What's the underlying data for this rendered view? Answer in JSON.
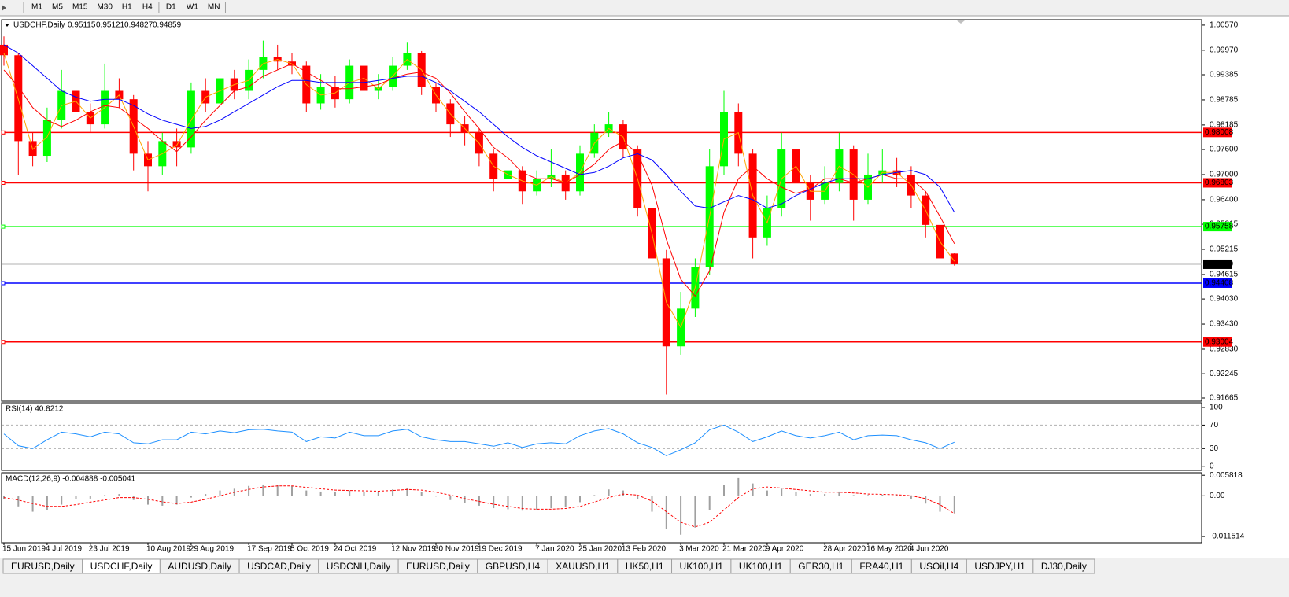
{
  "toolbar": {
    "timeframes": [
      "M1",
      "M5",
      "M15",
      "M30",
      "H1",
      "H4",
      "D1",
      "W1",
      "MN"
    ]
  },
  "tabs": {
    "items": [
      "EURUSD,Daily",
      "USDCHF,Daily",
      "AUDUSD,Daily",
      "USDCAD,Daily",
      "USDCNH,Daily",
      "EURUSD,Daily",
      "GBPUSD,H4",
      "XAUUSD,H1",
      "HK50,H1",
      "UK100,H1",
      "UK100,H1",
      "GER30,H1",
      "FRA40,H1",
      "USOil,H4",
      "USDJPY,H1",
      "DJ30,Daily"
    ],
    "active": 1
  },
  "chart_data": [
    {
      "type": "candlestick",
      "title": "USDCHF,Daily",
      "categories": [
        "15 Jun 2019",
        null,
        null,
        "4 Jul 2019",
        null,
        null,
        "23 Jul 2019",
        null,
        null,
        null,
        "10 Aug 2019",
        null,
        null,
        "29 Aug 2019",
        null,
        null,
        null,
        "17 Sep 2019",
        null,
        null,
        "5 Oct 2019",
        null,
        null,
        "24 Oct 2019",
        null,
        null,
        null,
        "12 Nov 2019",
        null,
        null,
        "30 Nov 2019",
        null,
        null,
        "19 Dec 2019",
        null,
        null,
        null,
        "7 Jan 2020",
        null,
        null,
        "25 Jan 2020",
        null,
        null,
        "13 Feb 2020",
        null,
        null,
        null,
        "3 Mar 2020",
        null,
        null,
        "21 Mar 2020",
        null,
        null,
        "9 Apr 2020",
        null,
        null,
        null,
        "28 Apr 2020",
        null,
        null,
        "16 May 2020",
        null,
        null,
        "4 Jun 2020",
        null,
        null,
        null
      ],
      "open": [
        1.001,
        0.9985,
        0.978,
        0.9745,
        0.983,
        0.99,
        0.985,
        0.982,
        0.99,
        0.988,
        0.975,
        0.972,
        0.978,
        0.9765,
        0.99,
        0.987,
        0.993,
        0.99,
        0.995,
        0.998,
        0.997,
        0.996,
        0.987,
        0.991,
        0.988,
        0.996,
        0.99,
        0.991,
        0.996,
        0.999,
        0.991,
        0.987,
        0.982,
        0.98,
        0.975,
        0.969,
        0.971,
        0.966,
        0.969,
        0.97,
        0.966,
        0.975,
        0.98,
        0.982,
        0.976,
        0.962,
        0.95,
        0.929,
        0.938,
        0.948,
        0.972,
        0.985,
        0.975,
        0.955,
        0.962,
        0.976,
        0.968,
        0.964,
        0.968,
        0.976,
        0.964,
        0.97,
        0.971,
        0.97,
        0.965,
        0.958,
        0.95115
      ],
      "high": [
        1.003,
        0.999,
        0.98,
        0.986,
        0.995,
        0.992,
        0.987,
        0.9965,
        0.993,
        0.989,
        0.978,
        0.98,
        0.981,
        0.992,
        0.993,
        0.996,
        0.995,
        0.9975,
        1.002,
        1.001,
        0.999,
        0.997,
        0.994,
        0.9935,
        0.9975,
        0.9965,
        0.994,
        0.998,
        1.0015,
        0.9995,
        0.992,
        0.988,
        0.984,
        0.981,
        0.976,
        0.974,
        0.972,
        0.971,
        0.976,
        0.971,
        0.977,
        0.982,
        0.985,
        0.983,
        0.977,
        0.964,
        0.952,
        0.942,
        0.95,
        0.976,
        0.99,
        0.987,
        0.976,
        0.965,
        0.98,
        0.979,
        0.97,
        0.972,
        0.98,
        0.977,
        0.975,
        0.976,
        0.974,
        0.972,
        0.966,
        0.959,
        0.95121
      ],
      "low": [
        0.996,
        0.97,
        0.972,
        0.973,
        0.981,
        0.983,
        0.98,
        0.981,
        0.986,
        0.971,
        0.966,
        0.97,
        0.972,
        0.975,
        0.985,
        0.986,
        0.988,
        0.988,
        0.993,
        0.995,
        0.994,
        0.985,
        0.9855,
        0.986,
        0.987,
        0.988,
        0.988,
        0.99,
        0.995,
        0.989,
        0.985,
        0.979,
        0.977,
        0.972,
        0.966,
        0.968,
        0.963,
        0.965,
        0.967,
        0.964,
        0.965,
        0.974,
        0.979,
        0.974,
        0.96,
        0.947,
        0.9175,
        0.927,
        0.936,
        0.946,
        0.97,
        0.972,
        0.95,
        0.953,
        0.96,
        0.965,
        0.959,
        0.963,
        0.966,
        0.959,
        0.963,
        0.968,
        0.967,
        0.962,
        0.955,
        0.9378,
        0.94827
      ],
      "close": [
        0.9985,
        0.978,
        0.9745,
        0.983,
        0.99,
        0.985,
        0.982,
        0.99,
        0.988,
        0.975,
        0.972,
        0.978,
        0.9765,
        0.99,
        0.987,
        0.993,
        0.99,
        0.995,
        0.998,
        0.997,
        0.996,
        0.987,
        0.991,
        0.988,
        0.996,
        0.99,
        0.991,
        0.996,
        0.999,
        0.991,
        0.987,
        0.982,
        0.98,
        0.975,
        0.969,
        0.971,
        0.966,
        0.969,
        0.97,
        0.966,
        0.975,
        0.98,
        0.982,
        0.976,
        0.962,
        0.95,
        0.929,
        0.938,
        0.948,
        0.972,
        0.985,
        0.975,
        0.955,
        0.962,
        0.976,
        0.968,
        0.964,
        0.968,
        0.976,
        0.964,
        0.97,
        0.971,
        0.97,
        0.965,
        0.958,
        0.95,
        0.94859
      ],
      "up_color": "#00ff00",
      "down_color": "#ff0000",
      "series": [
        {
          "color": "#ffa500",
          "values": [
            0.999,
            0.988,
            0.976,
            0.979,
            0.9865,
            0.9875,
            0.9835,
            0.986,
            0.989,
            0.9815,
            0.9735,
            0.975,
            0.977,
            0.983,
            0.9885,
            0.99,
            0.9915,
            0.9925,
            0.9965,
            0.9975,
            0.9965,
            0.9915,
            0.989,
            0.9895,
            0.992,
            0.993,
            0.9905,
            0.9935,
            0.9975,
            0.995,
            0.989,
            0.9845,
            0.981,
            0.9775,
            0.972,
            0.97,
            0.9685,
            0.9675,
            0.9695,
            0.968,
            0.9705,
            0.9775,
            0.981,
            0.979,
            0.969,
            0.956,
            0.9395,
            0.9335,
            0.943,
            0.96,
            0.9785,
            0.98,
            0.965,
            0.9585,
            0.969,
            0.972,
            0.966,
            0.966,
            0.972,
            0.97,
            0.967,
            0.9705,
            0.9705,
            0.9675,
            0.9615,
            0.954,
            0.9493
          ]
        },
        {
          "color": "#ff0000",
          "values": [
            0.995,
            0.991,
            0.986,
            0.983,
            0.9815,
            0.983,
            0.985,
            0.9865,
            0.986,
            0.9835,
            0.981,
            0.978,
            0.9755,
            0.979,
            0.983,
            0.9865,
            0.99,
            0.991,
            0.9935,
            0.995,
            0.9965,
            0.9945,
            0.9925,
            0.9905,
            0.9905,
            0.991,
            0.9915,
            0.993,
            0.994,
            0.9945,
            0.993,
            0.9895,
            0.985,
            0.981,
            0.9765,
            0.974,
            0.9705,
            0.969,
            0.969,
            0.968,
            0.97,
            0.9725,
            0.976,
            0.978,
            0.975,
            0.9675,
            0.9545,
            0.945,
            0.941,
            0.947,
            0.961,
            0.969,
            0.972,
            0.969,
            0.967,
            0.9655,
            0.9665,
            0.969,
            0.969,
            0.968,
            0.969,
            0.97,
            0.969,
            0.969,
            0.966,
            0.96,
            0.9535
          ]
        },
        {
          "color": "#0000ff",
          "values": [
            1.001,
            0.999,
            0.996,
            0.993,
            0.99,
            0.9885,
            0.9875,
            0.988,
            0.988,
            0.9865,
            0.9845,
            0.983,
            0.982,
            0.981,
            0.9815,
            0.983,
            0.985,
            0.987,
            0.989,
            0.991,
            0.9925,
            0.9925,
            0.992,
            0.992,
            0.992,
            0.992,
            0.9925,
            0.993,
            0.9935,
            0.9935,
            0.992,
            0.99,
            0.9875,
            0.985,
            0.982,
            0.979,
            0.9765,
            0.9745,
            0.973,
            0.9715,
            0.97,
            0.9705,
            0.972,
            0.974,
            0.975,
            0.9735,
            0.97,
            0.966,
            0.9625,
            0.962,
            0.9635,
            0.965,
            0.964,
            0.962,
            0.963,
            0.965,
            0.9665,
            0.968,
            0.969,
            0.969,
            0.969,
            0.97,
            0.9705,
            0.971,
            0.97,
            0.967,
            0.961
          ]
        }
      ],
      "levels": [
        {
          "value": 0.98008,
          "color": "#ff0000"
        },
        {
          "value": 0.96803,
          "color": "#ff0000"
        },
        {
          "value": 0.95758,
          "color": "#00ff00"
        },
        {
          "value": 0.94408,
          "color": "#0000ff"
        },
        {
          "value": 0.93004,
          "color": "#ff0000"
        }
      ],
      "ylim": [
        0.9159,
        1.007
      ],
      "yticks": [
        {
          "value": 1.0057,
          "label": "1.00570"
        },
        {
          "value": 0.9997,
          "label": "0.99970"
        },
        0.99385,
        0.98785,
        0.98185,
        {
          "value": 0.976,
          "label": "0.97600"
        },
        {
          "value": 0.97,
          "label": "0.97000"
        },
        {
          "value": 0.964,
          "label": "0.96400"
        },
        0.95815,
        0.95215,
        0.94615,
        {
          "value": 0.9403,
          "label": "0.94030"
        },
        {
          "value": 0.9343,
          "label": "0.93430"
        },
        {
          "value": 0.9283,
          "label": "0.92830"
        },
        0.92245,
        0.91665
      ]
    },
    {
      "type": "line",
      "title": "RSI(14) 40.8212",
      "color": "#1e90ff",
      "values": [
        55,
        35,
        30,
        45,
        58,
        55,
        50,
        58,
        55,
        40,
        38,
        45,
        45,
        58,
        55,
        60,
        57,
        62,
        63,
        60,
        58,
        42,
        50,
        48,
        58,
        52,
        52,
        60,
        63,
        50,
        45,
        42,
        42,
        38,
        34,
        40,
        32,
        38,
        40,
        38,
        52,
        60,
        64,
        55,
        40,
        32,
        18,
        28,
        40,
        62,
        70,
        58,
        42,
        50,
        60,
        52,
        48,
        52,
        58,
        45,
        52,
        53,
        52,
        45,
        40,
        30,
        40.8212
      ],
      "levels": [
        70,
        30
      ],
      "ylim": [
        -7,
        108
      ],
      "yticks": [
        100,
        70,
        30,
        0
      ]
    },
    {
      "type": "macd",
      "title": "MACD(12,26,9) -0.004888 -0.005041",
      "color": "#a0a0a0",
      "values": [
        -0.001,
        -0.003,
        -0.0045,
        -0.004,
        -0.0025,
        -0.001,
        -0.0008,
        0.0002,
        0.0005,
        -0.0012,
        -0.0025,
        -0.0028,
        -0.0025,
        -0.0005,
        0.0005,
        0.0015,
        0.002,
        0.0028,
        0.0032,
        0.003,
        0.0028,
        0.0015,
        0.0012,
        0.001,
        0.0015,
        0.0012,
        0.0012,
        0.0018,
        0.0022,
        0.001,
        -0.0002,
        -0.0012,
        -0.002,
        -0.0028,
        -0.0035,
        -0.0038,
        -0.0042,
        -0.004,
        -0.0035,
        -0.0032,
        -0.0018,
        0.0002,
        0.0018,
        0.0015,
        -0.001,
        -0.0045,
        -0.0095,
        -0.011,
        -0.009,
        -0.004,
        0.003,
        0.005,
        0.0035,
        0.0015,
        0.002,
        0.0012,
        0.0005,
        0.0005,
        0.0012,
        0.0002,
        0.0002,
        0.0003,
        0.0002,
        -0.0008,
        -0.0022,
        -0.0045,
        -0.004888
      ],
      "signal": {
        "color": "#ff0000",
        "values": [
          -0.0005,
          -0.0012,
          -0.0022,
          -0.003,
          -0.003,
          -0.0025,
          -0.0018,
          -0.0012,
          -0.0005,
          -0.0005,
          -0.001,
          -0.0017,
          -0.0022,
          -0.0018,
          -0.001,
          0.0,
          0.001,
          0.0018,
          0.0025,
          0.0028,
          0.0028,
          0.0024,
          0.002,
          0.0016,
          0.0015,
          0.0014,
          0.0013,
          0.0015,
          0.0018,
          0.0016,
          0.001,
          0.0002,
          -0.0008,
          -0.0016,
          -0.0024,
          -0.003,
          -0.0036,
          -0.0038,
          -0.0038,
          -0.0036,
          -0.003,
          -0.0018,
          -0.0005,
          0.0005,
          0.0002,
          -0.0015,
          -0.0045,
          -0.0075,
          -0.0088,
          -0.0075,
          -0.004,
          -0.0005,
          0.002,
          0.0025,
          0.0022,
          0.0018,
          0.0014,
          0.001,
          0.001,
          0.0008,
          0.0005,
          0.0004,
          0.0003,
          0.0,
          -0.0008,
          -0.0025,
          -0.005041
        ]
      },
      "ylim": [
        -0.01328,
        0.00653
      ],
      "yticks": [
        0.005818,
        {
          "value": 0,
          "label": "0.00"
        },
        -0.011514
      ]
    }
  ]
}
